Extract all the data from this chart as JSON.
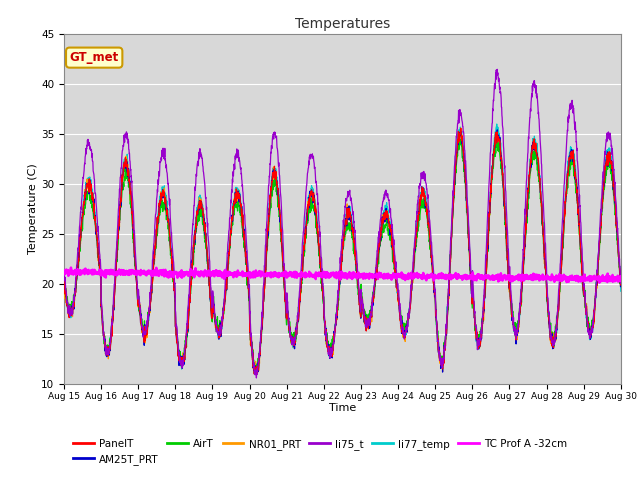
{
  "title": "Temperatures",
  "xlabel": "Time",
  "ylabel": "Temperature (C)",
  "ylim": [
    10,
    45
  ],
  "xlim": [
    0,
    15
  ],
  "background_color": "#ffffff",
  "plot_bg_color": "#d8d8d8",
  "grid_color": "#ffffff",
  "series_colors": {
    "PanelT": "#ff0000",
    "AM25T_PRT": "#0000cc",
    "AirT": "#00cc00",
    "NR01_PRT": "#ff9900",
    "li75_t": "#9900cc",
    "li77_temp": "#00cccc",
    "TC Prof A -32cm": "#ff00ff"
  },
  "annotation_text": "GT_met",
  "annotation_bg": "#ffffcc",
  "annotation_border": "#cc9900",
  "annotation_text_color": "#cc0000",
  "x_tick_labels": [
    "Aug 15",
    "Aug 16",
    "Aug 17",
    "Aug 18",
    "Aug 19",
    "Aug 20",
    "Aug 21",
    "Aug 22",
    "Aug 23",
    "Aug 24",
    "Aug 25",
    "Aug 26",
    "Aug 27",
    "Aug 28",
    "Aug 29",
    "Aug 30"
  ],
  "x_tick_positions": [
    0,
    1,
    2,
    3,
    4,
    5,
    6,
    7,
    8,
    9,
    10,
    11,
    12,
    13,
    14,
    15
  ]
}
